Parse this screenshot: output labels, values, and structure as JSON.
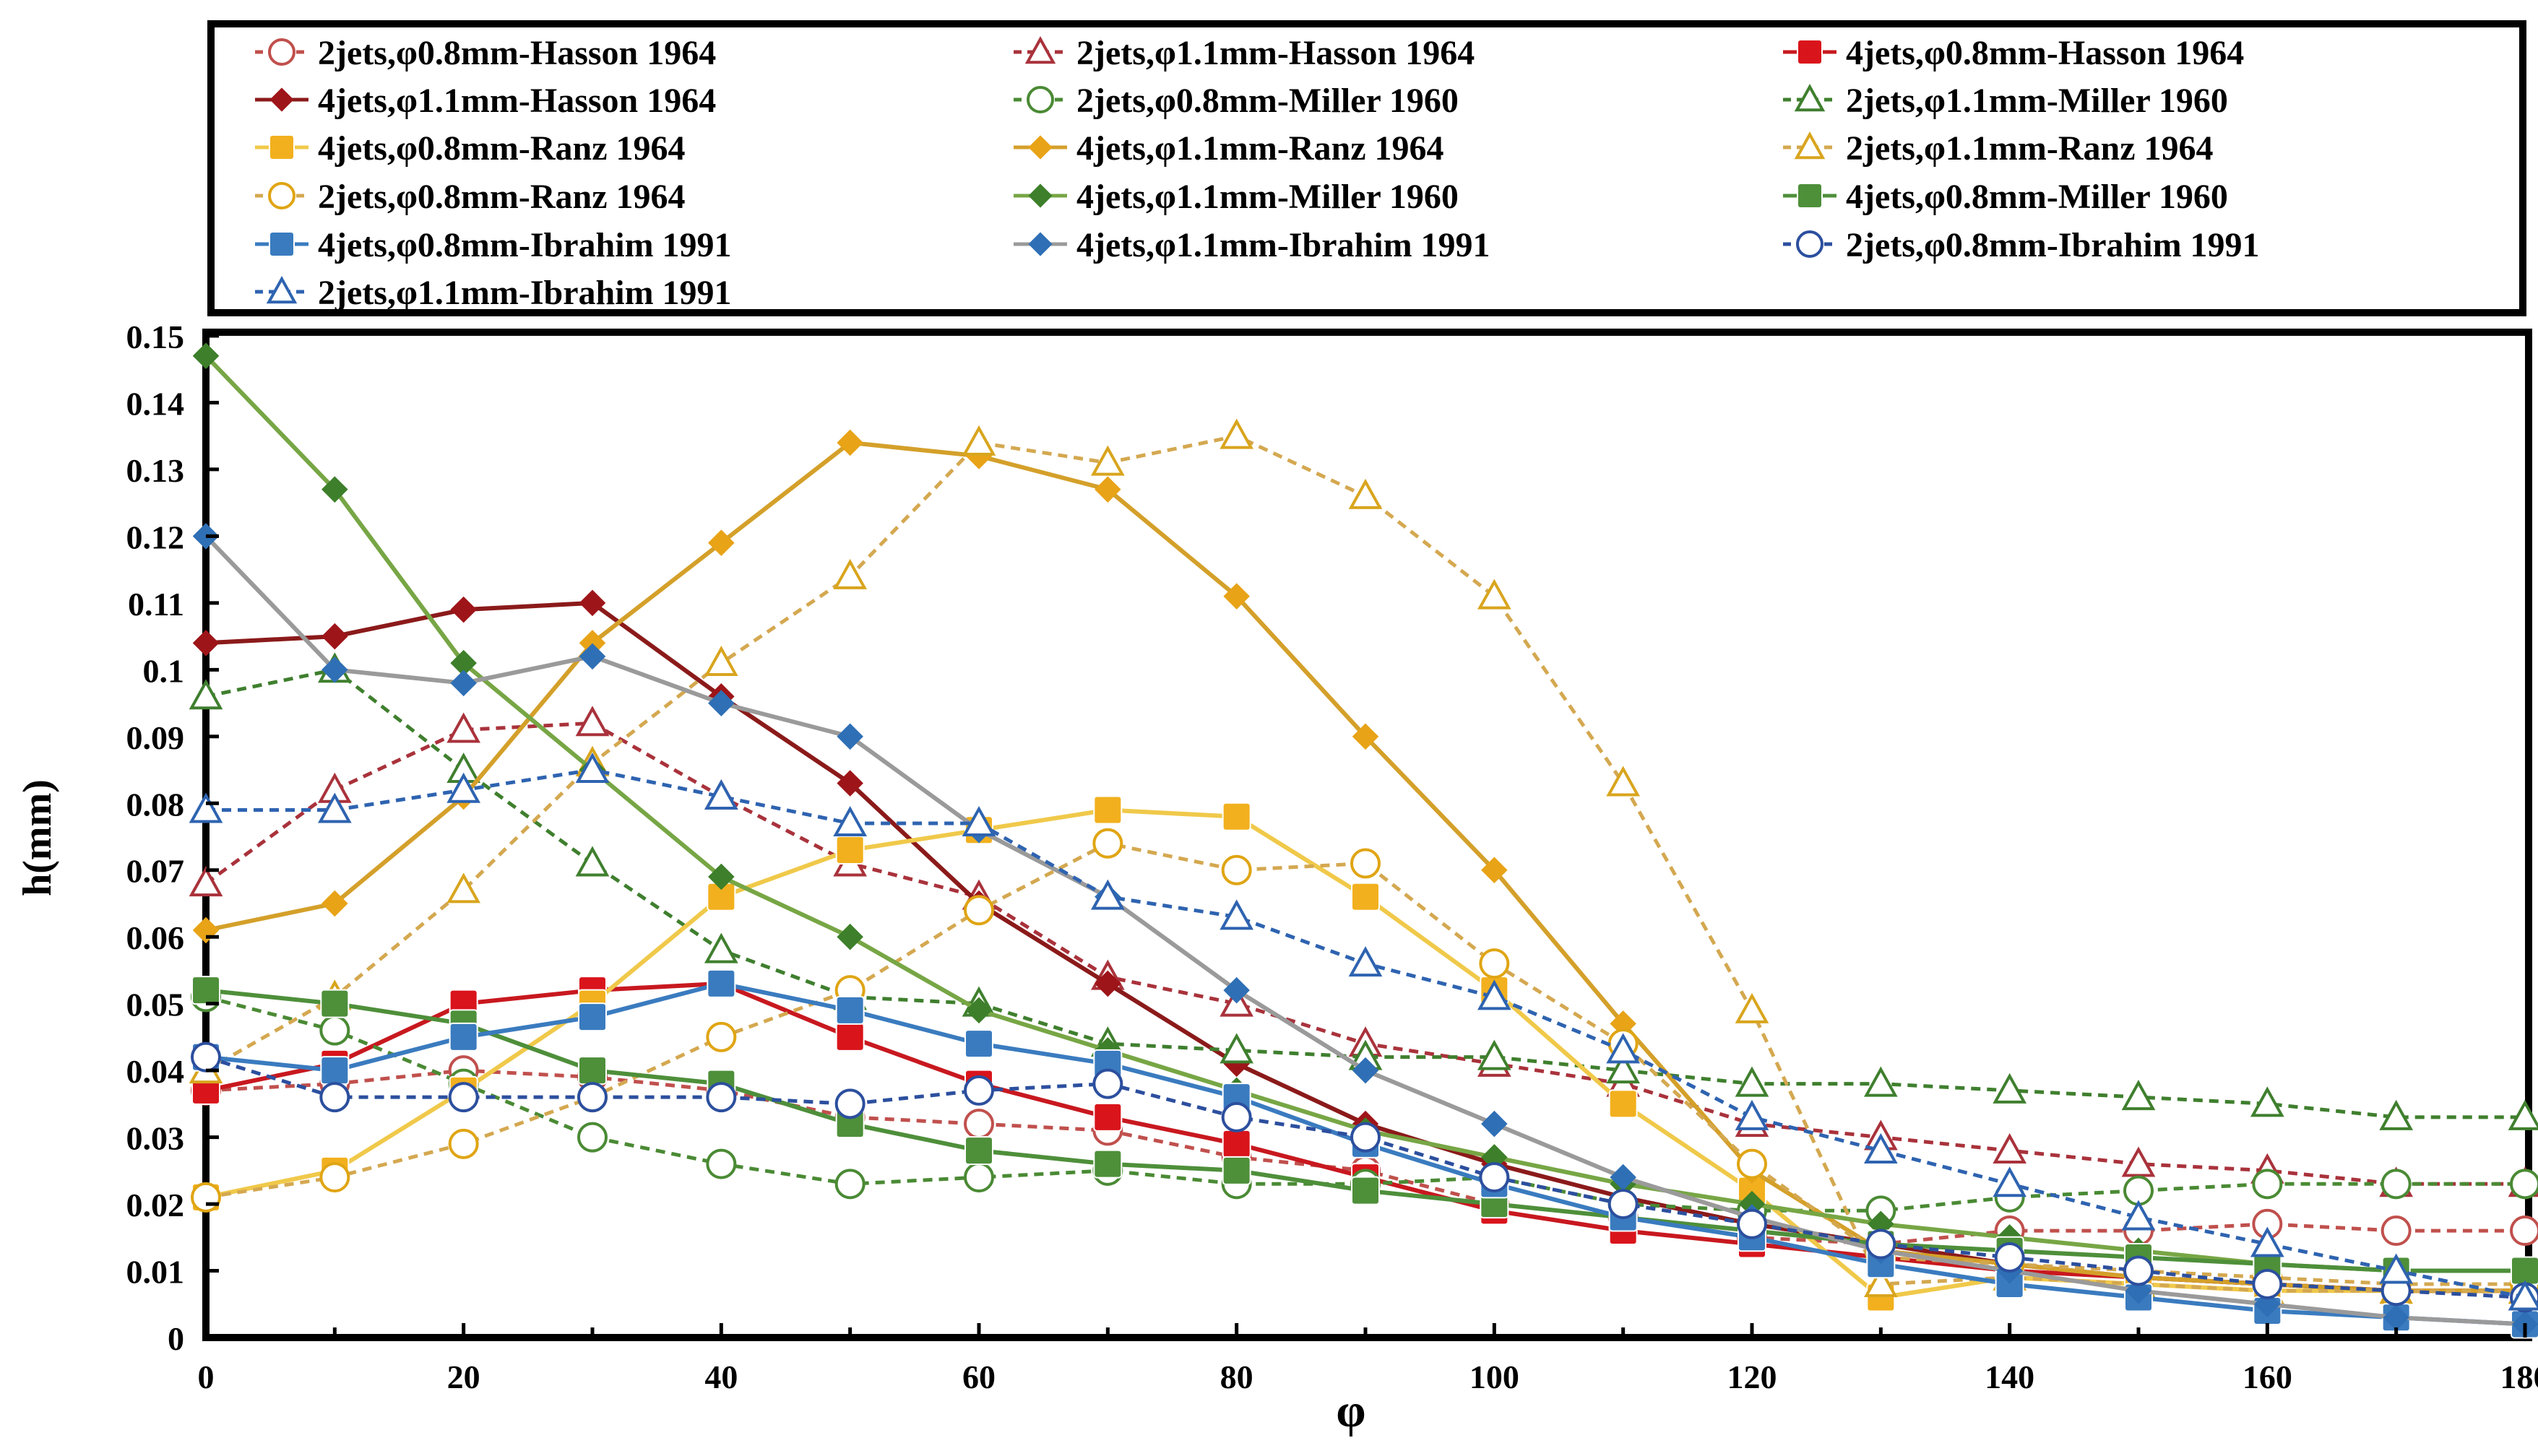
{
  "chart_data": {
    "type": "line",
    "title": "",
    "xlabel": "φ",
    "ylabel": "h(mm)",
    "xlim": [
      0,
      180
    ],
    "ylim": [
      0,
      0.15
    ],
    "x_ticks": [
      0,
      20,
      40,
      60,
      80,
      100,
      120,
      140,
      160,
      180
    ],
    "y_ticks": [
      0,
      0.01,
      0.02,
      0.03,
      0.04,
      0.05,
      0.06,
      0.07,
      0.08,
      0.09,
      0.1,
      0.11,
      0.12,
      0.13,
      0.14,
      0.15
    ],
    "y_tick_labels": [
      "0",
      "0.01",
      "0.02",
      "0.03",
      "0.04",
      "0.05",
      "0.06",
      "0.07",
      "0.08",
      "0.09",
      "0.1",
      "0.11",
      "0.12",
      "0.13",
      "0.14",
      "0.15"
    ],
    "grid": false,
    "legend_position": "top",
    "x": [
      0,
      10,
      20,
      30,
      40,
      50,
      60,
      70,
      80,
      90,
      100,
      110,
      120,
      130,
      140,
      150,
      160,
      170,
      180
    ],
    "series": [
      {
        "name": "2jets,φ0.8mm-Hasson 1964",
        "color": "#c0504d",
        "marker": "circle",
        "filled": false,
        "dashed": true,
        "line_color": "#c0504d",
        "values": [
          0.037,
          0.038,
          0.04,
          0.039,
          0.037,
          0.033,
          0.032,
          0.031,
          0.027,
          0.025,
          0.02,
          0.018,
          0.015,
          0.014,
          0.016,
          0.016,
          0.017,
          0.016,
          0.016
        ]
      },
      {
        "name": "2jets,φ1.1mm-Hasson 1964",
        "color": "#a9323b",
        "marker": "triangle",
        "filled": false,
        "dashed": true,
        "line_color": "#a9323b",
        "values": [
          0.068,
          0.082,
          0.091,
          0.092,
          0.081,
          0.071,
          0.066,
          0.054,
          0.05,
          0.044,
          0.041,
          0.038,
          0.032,
          0.03,
          0.028,
          0.026,
          0.025,
          0.023,
          0.023
        ]
      },
      {
        "name": "4jets,φ0.8mm-Hasson 1964",
        "color": "#d9141b",
        "marker": "square",
        "filled": true,
        "dashed": false,
        "line_color": "#c8181f",
        "values": [
          0.037,
          0.041,
          0.05,
          0.052,
          0.053,
          0.045,
          0.038,
          0.033,
          0.029,
          0.024,
          0.019,
          0.016,
          0.014,
          0.012,
          0.01,
          0.009,
          0.008,
          0.007,
          0.007
        ]
      },
      {
        "name": "4jets,φ1.1mm-Hasson 1964",
        "color": "#9e1519",
        "marker": "diamond",
        "filled": true,
        "dashed": false,
        "line_color": "#8b1a1a",
        "values": [
          0.104,
          0.105,
          0.109,
          0.11,
          0.096,
          0.083,
          0.065,
          0.053,
          0.041,
          0.032,
          0.026,
          0.021,
          0.017,
          0.014,
          0.011,
          0.009,
          0.008,
          0.007,
          0.007
        ]
      },
      {
        "name": "2jets,φ0.8mm-Miller 1960",
        "color": "#4a8a34",
        "marker": "circle",
        "filled": false,
        "dashed": true,
        "line_color": "#4a8a34",
        "values": [
          0.051,
          0.046,
          0.038,
          0.03,
          0.026,
          0.023,
          0.024,
          0.025,
          0.023,
          0.023,
          0.024,
          0.02,
          0.019,
          0.019,
          0.021,
          0.022,
          0.023,
          0.023,
          0.023
        ]
      },
      {
        "name": "2jets,φ1.1mm-Miller 1960",
        "color": "#3f7f2e",
        "marker": "triangle",
        "filled": false,
        "dashed": true,
        "line_color": "#3f7f2e",
        "values": [
          0.096,
          0.1,
          0.085,
          0.071,
          0.058,
          0.051,
          0.05,
          0.044,
          0.043,
          0.042,
          0.042,
          0.04,
          0.038,
          0.038,
          0.037,
          0.036,
          0.035,
          0.033,
          0.033
        ]
      },
      {
        "name": "4jets,φ0.8mm-Ranz 1964",
        "color": "#f2b01e",
        "marker": "square",
        "filled": true,
        "dashed": false,
        "line_color": "#f0c94a",
        "values": [
          0.021,
          0.025,
          0.037,
          0.05,
          0.066,
          0.073,
          0.076,
          0.079,
          0.078,
          0.066,
          0.052,
          0.035,
          0.022,
          0.006,
          0.009,
          0.008,
          0.007,
          0.007,
          0.007
        ]
      },
      {
        "name": "4jets,φ1.1mm-Ranz 1964",
        "color": "#e8a317",
        "marker": "diamond",
        "filled": true,
        "dashed": false,
        "line_color": "#d4a02a",
        "values": [
          0.061,
          0.065,
          0.081,
          0.104,
          0.119,
          0.134,
          0.132,
          0.127,
          0.111,
          0.09,
          0.07,
          0.047,
          0.025,
          0.013,
          0.011,
          0.009,
          0.008,
          0.007,
          0.007
        ]
      },
      {
        "name": "2jets,φ1.1mm-Ranz 1964",
        "color": "#d9a51e",
        "marker": "triangle",
        "filled": false,
        "dashed": true,
        "line_color": "#d4a850",
        "values": [
          0.04,
          0.051,
          0.067,
          0.086,
          0.101,
          0.114,
          0.134,
          0.131,
          0.135,
          0.126,
          0.111,
          0.083,
          0.049,
          0.008,
          0.009,
          0.008,
          0.007,
          0.007,
          0.007
        ]
      },
      {
        "name": "2jets,φ0.8mm-Ranz 1964",
        "color": "#e0a514",
        "marker": "circle",
        "filled": false,
        "dashed": true,
        "line_color": "#d4a850",
        "values": [
          0.021,
          0.024,
          0.029,
          0.036,
          0.045,
          0.052,
          0.064,
          0.074,
          0.07,
          0.071,
          0.056,
          0.044,
          0.026,
          0.012,
          0.011,
          0.01,
          0.009,
          0.008,
          0.008
        ]
      },
      {
        "name": "4jets,φ1.1mm-Miller 1960",
        "color": "#3d7f2a",
        "marker": "diamond",
        "filled": true,
        "dashed": false,
        "line_color": "#77a645",
        "values": [
          0.147,
          0.127,
          0.101,
          0.085,
          0.069,
          0.06,
          0.049,
          0.043,
          0.037,
          0.031,
          0.027,
          0.023,
          0.02,
          0.017,
          0.015,
          0.013,
          0.011,
          0.01,
          0.01
        ]
      },
      {
        "name": "4jets,φ0.8mm-Miller 1960",
        "color": "#4e8f3a",
        "marker": "square",
        "filled": true,
        "dashed": false,
        "line_color": "#4e8f3a",
        "values": [
          0.052,
          0.05,
          0.047,
          0.04,
          0.038,
          0.032,
          0.028,
          0.026,
          0.025,
          0.022,
          0.02,
          0.018,
          0.016,
          0.014,
          0.013,
          0.012,
          0.011,
          0.01,
          0.01
        ]
      },
      {
        "name": "4jets,φ0.8mm-Ibrahim 1991",
        "color": "#3a7bbf",
        "marker": "square",
        "filled": true,
        "dashed": false,
        "line_color": "#3a7bbf",
        "values": [
          0.042,
          0.04,
          0.045,
          0.048,
          0.053,
          0.049,
          0.044,
          0.041,
          0.036,
          0.029,
          0.023,
          0.018,
          0.015,
          0.011,
          0.008,
          0.006,
          0.004,
          0.003,
          0.002
        ]
      },
      {
        "name": "4jets,φ1.1mm-Ibrahim 1991",
        "color": "#2f6fb5",
        "marker": "diamond",
        "filled": true,
        "dashed": false,
        "line_color": "#9a9a9a",
        "values": [
          0.12,
          0.1,
          0.098,
          0.102,
          0.095,
          0.09,
          0.076,
          0.066,
          0.052,
          0.04,
          0.032,
          0.024,
          0.018,
          0.013,
          0.01,
          0.007,
          0.005,
          0.003,
          0.002
        ]
      },
      {
        "name": "2jets,φ0.8mm-Ibrahim 1991",
        "color": "#2c4f9e",
        "marker": "circle",
        "filled": false,
        "dashed": true,
        "line_color": "#2c4f9e",
        "values": [
          0.042,
          0.036,
          0.036,
          0.036,
          0.036,
          0.035,
          0.037,
          0.038,
          0.033,
          0.03,
          0.024,
          0.02,
          0.017,
          0.014,
          0.012,
          0.01,
          0.008,
          0.007,
          0.006
        ]
      },
      {
        "name": "2jets,φ1.1mm-Ibrahim 1991",
        "color": "#2e63b0",
        "marker": "triangle",
        "filled": false,
        "dashed": true,
        "line_color": "#2e63b0",
        "values": [
          0.079,
          0.079,
          0.082,
          0.085,
          0.081,
          0.077,
          0.077,
          0.066,
          0.063,
          0.056,
          0.051,
          0.043,
          0.033,
          0.028,
          0.023,
          0.018,
          0.014,
          0.01,
          0.006
        ]
      }
    ]
  }
}
